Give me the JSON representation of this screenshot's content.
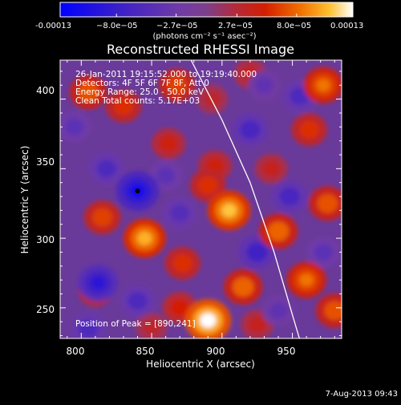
{
  "colorbar": {
    "ticks": [
      "-0.00013",
      "−8.0e−05",
      "−2.7e−05",
      "2.7e−05",
      "8.0e−05",
      "0.00013"
    ],
    "tick_values": [
      -0.00013,
      -8e-05,
      -2.7e-05,
      2.7e-05,
      8e-05,
      0.00013
    ],
    "range": [
      -0.00013,
      0.00013
    ],
    "unit_label": "(photons cm⁻² s⁻¹ asec⁻²)"
  },
  "chart_data": {
    "type": "heatmap",
    "title": "Reconstructed RHESSI Image",
    "xlabel": "Heliocentric X (arcsec)",
    "ylabel": "Heliocentric Y (arcsec)",
    "xlim": [
      785,
      985
    ],
    "ylim": [
      228,
      428
    ],
    "xticks": [
      800,
      850,
      900,
      950
    ],
    "yticks": [
      250,
      300,
      350,
      400
    ],
    "annotations": [
      "26-Jan-2011 19:15:52.000 to 19:19:40.000",
      "Detectors: 4F 5F 6F 7F 8F, Att 0",
      "Energy Range: 25.0 - 50.0 keV",
      "Clean     Total counts: 5.17E+03"
    ],
    "peak_label": "Position of Peak = [890,241]",
    "peak": [
      890,
      241
    ],
    "min_marker": [
      840,
      334
    ],
    "limb_curve": [
      [
        878,
        428
      ],
      [
        900,
        385
      ],
      [
        920,
        340
      ],
      [
        937,
        290
      ],
      [
        950,
        245
      ],
      [
        955,
        228
      ]
    ],
    "blobs": [
      {
        "x": 805,
        "y": 405,
        "v": 0.55
      },
      {
        "x": 830,
        "y": 395,
        "v": 0.45
      },
      {
        "x": 868,
        "y": 410,
        "v": 0.5
      },
      {
        "x": 862,
        "y": 368,
        "v": 0.35
      },
      {
        "x": 893,
        "y": 400,
        "v": 0.25
      },
      {
        "x": 972,
        "y": 410,
        "v": 0.65
      },
      {
        "x": 920,
        "y": 418,
        "v": 0.3
      },
      {
        "x": 962,
        "y": 378,
        "v": 0.45
      },
      {
        "x": 935,
        "y": 350,
        "v": 0.3
      },
      {
        "x": 895,
        "y": 352,
        "v": 0.35
      },
      {
        "x": 905,
        "y": 320,
        "v": 0.85
      },
      {
        "x": 890,
        "y": 338,
        "v": 0.45
      },
      {
        "x": 845,
        "y": 300,
        "v": 0.8
      },
      {
        "x": 815,
        "y": 315,
        "v": 0.5
      },
      {
        "x": 872,
        "y": 282,
        "v": 0.45
      },
      {
        "x": 940,
        "y": 305,
        "v": 0.6
      },
      {
        "x": 975,
        "y": 325,
        "v": 0.55
      },
      {
        "x": 960,
        "y": 270,
        "v": 0.65
      },
      {
        "x": 915,
        "y": 265,
        "v": 0.6
      },
      {
        "x": 980,
        "y": 248,
        "v": 0.55
      },
      {
        "x": 890,
        "y": 241,
        "v": 1.0
      },
      {
        "x": 870,
        "y": 250,
        "v": 0.4
      },
      {
        "x": 810,
        "y": 262,
        "v": 0.35
      },
      {
        "x": 925,
        "y": 238,
        "v": 0.3
      },
      {
        "x": 850,
        "y": 236,
        "v": 0.25
      },
      {
        "x": 840,
        "y": 334,
        "v": -0.85
      },
      {
        "x": 812,
        "y": 268,
        "v": -0.7
      },
      {
        "x": 818,
        "y": 350,
        "v": -0.45
      },
      {
        "x": 860,
        "y": 345,
        "v": -0.35
      },
      {
        "x": 870,
        "y": 318,
        "v": -0.4
      },
      {
        "x": 925,
        "y": 290,
        "v": -0.55
      },
      {
        "x": 948,
        "y": 330,
        "v": -0.5
      },
      {
        "x": 920,
        "y": 378,
        "v": -0.5
      },
      {
        "x": 955,
        "y": 402,
        "v": -0.45
      },
      {
        "x": 840,
        "y": 255,
        "v": -0.45
      },
      {
        "x": 795,
        "y": 380,
        "v": -0.35
      },
      {
        "x": 805,
        "y": 235,
        "v": -0.45
      },
      {
        "x": 972,
        "y": 290,
        "v": -0.35
      },
      {
        "x": 940,
        "y": 248,
        "v": -0.3
      },
      {
        "x": 930,
        "y": 410,
        "v": -0.3
      }
    ]
  },
  "footer": {
    "date": "7-Aug-2013 09:43"
  }
}
